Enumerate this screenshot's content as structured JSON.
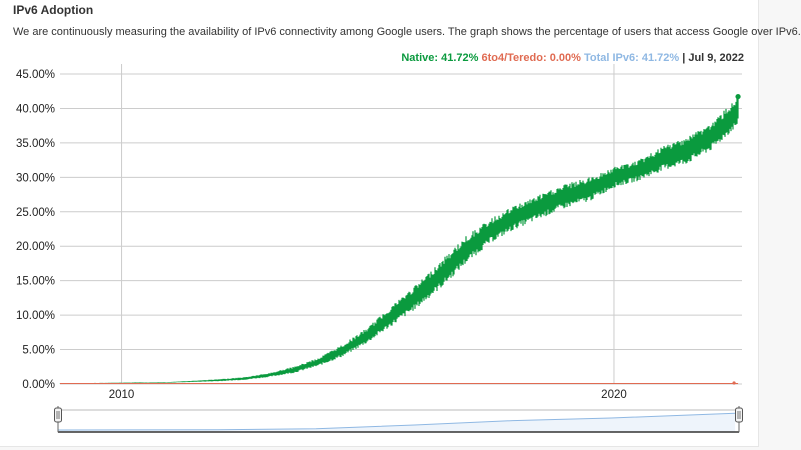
{
  "page": {
    "title": "IPv6 Adoption",
    "description": "We are continuously measuring the availability of IPv6 connectivity among Google users. The graph shows the percentage of users that access Google over IPv6."
  },
  "legend": {
    "native": "Native: 41.72%",
    "teredo": "6to4/Teredo: 0.00%",
    "total": "Total IPv6: 41.72%",
    "separator": "|",
    "date": "Jul 9, 2022"
  },
  "colors": {
    "native": "#0a9a3e",
    "teredo": "#e06b52",
    "total": "#8fb8e3",
    "grid": "#cccccc"
  },
  "chart_data": {
    "type": "area",
    "x_ticks": [
      "2010",
      "2020"
    ],
    "y_ticks": [
      "0.00%",
      "5.00%",
      "10.00%",
      "15.00%",
      "20.00%",
      "25.00%",
      "30.00%",
      "35.00%",
      "40.00%",
      "45.00%"
    ],
    "ylim": [
      0,
      45
    ],
    "xlim": [
      2008.75,
      2022.6
    ],
    "grid": true,
    "series": [
      {
        "name": "Native",
        "x": [
          2008.75,
          2010.0,
          2011.0,
          2012.0,
          2012.5,
          2013.0,
          2013.5,
          2014.0,
          2014.5,
          2015.0,
          2015.5,
          2016.0,
          2016.5,
          2017.0,
          2017.5,
          2018.0,
          2018.5,
          2019.0,
          2019.5,
          2020.0,
          2020.5,
          2021.0,
          2021.5,
          2022.0,
          2022.52
        ],
        "lower": [
          0.05,
          0.1,
          0.2,
          0.4,
          0.6,
          1.0,
          1.6,
          2.6,
          4.0,
          6.0,
          8.5,
          11.0,
          14.0,
          17.5,
          20.5,
          22.5,
          24.0,
          25.5,
          26.5,
          28.5,
          29.5,
          31.0,
          32.0,
          34.0,
          37.5
        ],
        "upper": [
          0.1,
          0.2,
          0.3,
          0.7,
          1.0,
          1.6,
          2.5,
          3.8,
          5.8,
          8.2,
          11.5,
          14.5,
          18.0,
          21.5,
          24.0,
          26.0,
          27.5,
          29.0,
          30.0,
          31.5,
          32.5,
          34.5,
          36.0,
          38.0,
          41.72
        ]
      },
      {
        "name": "6to4/Teredo",
        "x": [
          2008.75,
          2022.52
        ],
        "values": [
          0.0,
          0.0
        ]
      }
    ],
    "navigator": {
      "x": [
        2008.75,
        2012.0,
        2014.0,
        2016.0,
        2018.0,
        2020.0,
        2022.52
      ],
      "values": [
        0.1,
        0.6,
        3.2,
        12.5,
        23.5,
        30.0,
        41.72
      ]
    }
  }
}
